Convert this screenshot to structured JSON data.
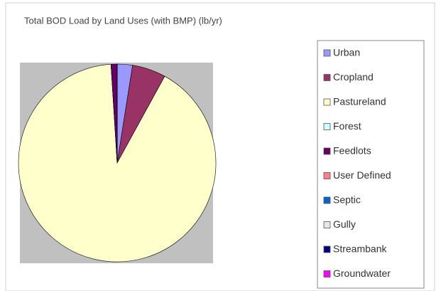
{
  "chart_data": {
    "type": "pie",
    "title": "Total BOD Load by Land Uses (with BMP) (lb/yr)",
    "categories": [
      "Urban",
      "Cropland",
      "Pastureland",
      "Forest",
      "Feedlots",
      "User Defined",
      "Septic",
      "Gully",
      "Streambank",
      "Groundwater"
    ],
    "values": [
      2.5,
      5.5,
      91,
      0,
      1,
      0,
      0,
      0,
      0,
      0
    ],
    "colors": [
      "#9999ff",
      "#993366",
      "#ffffcc",
      "#ccffff",
      "#660066",
      "#ff8080",
      "#0066cc",
      "#e6e6e6",
      "#000080",
      "#ff00ff"
    ],
    "legend": "right"
  }
}
